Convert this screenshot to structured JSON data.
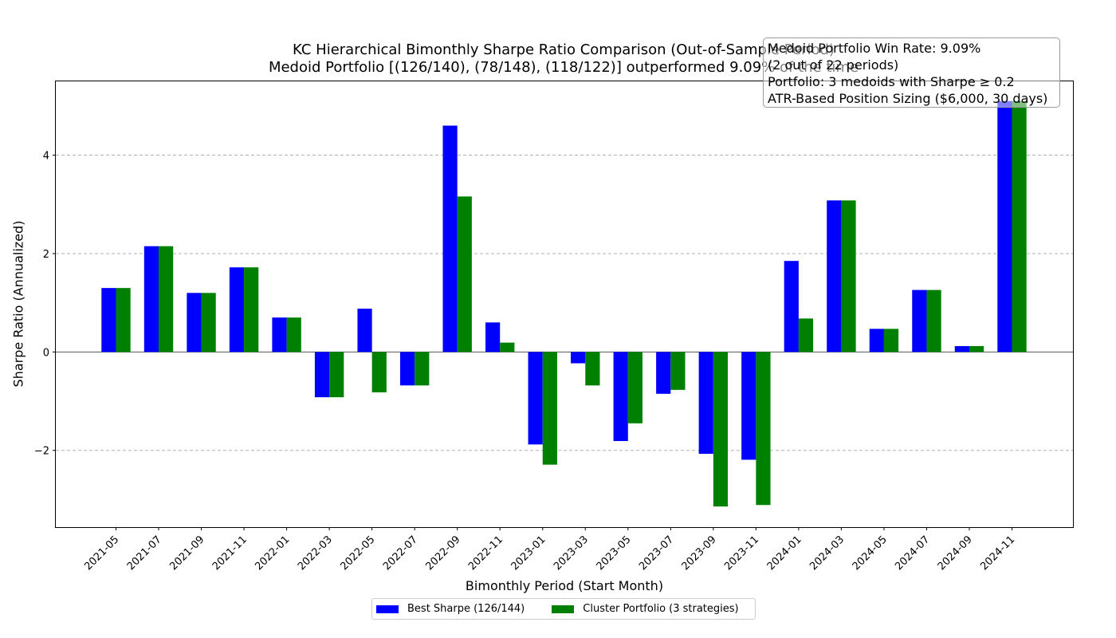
{
  "chart_data": {
    "type": "bar",
    "title_lines": [
      "KC Hierarchical Bimonthly Sharpe Ratio Comparison (Out-of-Sample Period)",
      "Medoid Portfolio [(126/140), (78/148), (118/122)] outperformed 9.09% of the time"
    ],
    "xlabel": "Bimonthly Period (Start Month)",
    "ylabel": "Sharpe Ratio (Annualized)",
    "categories": [
      "2021-05",
      "2021-07",
      "2021-09",
      "2021-11",
      "2022-01",
      "2022-03",
      "2022-05",
      "2022-07",
      "2022-09",
      "2022-11",
      "2023-01",
      "2023-03",
      "2023-05",
      "2023-07",
      "2023-09",
      "2023-11",
      "2024-01",
      "2024-03",
      "2024-05",
      "2024-07",
      "2024-09",
      "2024-11"
    ],
    "series": [
      {
        "name": "Best Sharpe (126/144)",
        "color": "#0000ff",
        "values": [
          1.3,
          2.15,
          1.2,
          1.72,
          0.7,
          -0.92,
          0.88,
          -0.68,
          4.6,
          0.6,
          -1.88,
          -0.23,
          -1.81,
          -0.85,
          -2.07,
          -2.19,
          1.85,
          3.08,
          0.47,
          1.26,
          0.12,
          5.1
        ]
      },
      {
        "name": "Cluster Portfolio (3 strategies)",
        "color": "#008000",
        "values": [
          1.3,
          2.15,
          1.2,
          1.72,
          0.7,
          -0.92,
          -0.82,
          -0.68,
          3.16,
          0.19,
          -2.29,
          -0.68,
          -1.45,
          -0.77,
          -3.14,
          -3.11,
          0.68,
          3.08,
          0.47,
          1.26,
          0.12,
          5.1
        ]
      }
    ],
    "ylim": [
      -3.56,
      5.5
    ],
    "yticks": [
      -2,
      0,
      2,
      4
    ],
    "ytick_labels": [
      "−2",
      "0",
      "2",
      "4"
    ],
    "grid": true,
    "legend_position": "bottom-center",
    "annotation_lines": [
      "Medoid Portfolio Win Rate: 9.09%",
      "(2 out of 22 periods)",
      "Portfolio: 3 medoids with Sharpe ≥ 0.2",
      "ATR-Based Position Sizing ($6,000, 30 days)"
    ]
  }
}
